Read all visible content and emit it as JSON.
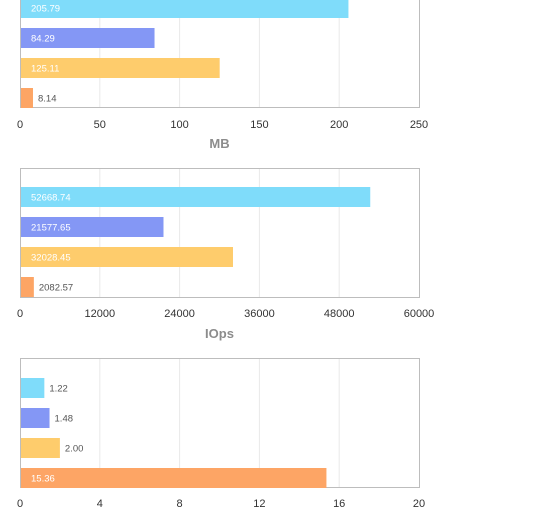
{
  "colors": {
    "cyan": "#7fdcfa",
    "blue": "#8497f5",
    "yellow": "#fecc6c",
    "orange": "#fda565"
  },
  "chart_data": [
    {
      "type": "bar",
      "orientation": "horizontal",
      "xlabel": "MB",
      "xlim": [
        0,
        250
      ],
      "ticks": [
        "0",
        "50",
        "100",
        "150",
        "200",
        "250"
      ],
      "values": [
        205.79,
        84.29,
        125.11,
        8.14
      ],
      "value_labels": [
        "205.79",
        "84.29",
        "125.11",
        "8.14"
      ],
      "grid": true
    },
    {
      "type": "bar",
      "orientation": "horizontal",
      "xlabel": "IOps",
      "xlim": [
        0,
        60000
      ],
      "ticks": [
        "0",
        "12000",
        "24000",
        "36000",
        "48000",
        "60000"
      ],
      "values": [
        52668.74,
        21577.65,
        32028.45,
        2082.57
      ],
      "value_labels": [
        "52668.74",
        "21577.65",
        "32028.45",
        "2082.57"
      ],
      "grid": true
    },
    {
      "type": "bar",
      "orientation": "horizontal",
      "xlabel": "",
      "xlim": [
        0,
        20
      ],
      "ticks": [
        "0",
        "4",
        "8",
        "12",
        "16",
        "20"
      ],
      "values": [
        1.22,
        1.48,
        2.0,
        15.36
      ],
      "value_labels": [
        "1.22",
        "1.48",
        "2.00",
        "15.36"
      ],
      "grid": true
    }
  ]
}
